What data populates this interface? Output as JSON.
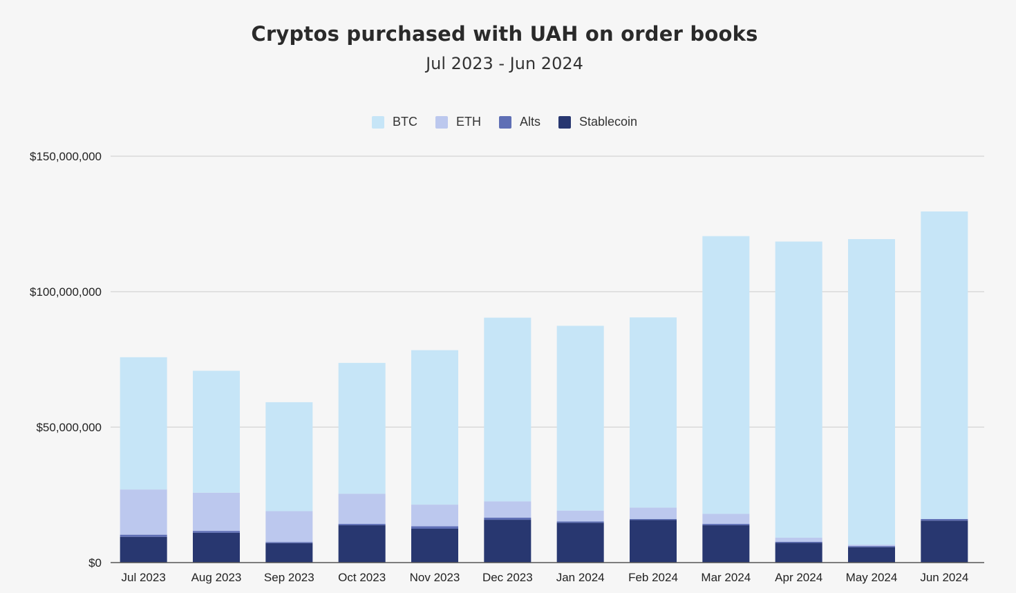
{
  "chart_data": {
    "type": "bar",
    "stacked": true,
    "title": "Cryptos purchased with UAH on order books",
    "subtitle": "Jul 2023 - Jun 2024",
    "xlabel": "",
    "ylabel": "",
    "ylim": [
      0,
      150000000
    ],
    "yticks": [
      {
        "value": 0,
        "label": "$0"
      },
      {
        "value": 50000000,
        "label": "$50,000,000"
      },
      {
        "value": 100000000,
        "label": "$100,000,000"
      },
      {
        "value": 150000000,
        "label": "$150,000,000"
      }
    ],
    "grid": true,
    "legend_position": "top-center",
    "categories": [
      "Jul 2023",
      "Aug 2023",
      "Sep 2023",
      "Oct 2023",
      "Nov 2023",
      "Dec 2023",
      "Jan 2024",
      "Feb 2024",
      "Mar 2024",
      "Apr 2024",
      "May 2024",
      "Jun 2024"
    ],
    "series": [
      {
        "name": "Stablecoin",
        "color": "#283770",
        "values": [
          9500000,
          11000000,
          7200000,
          13800000,
          12500000,
          15800000,
          14700000,
          15700000,
          13800000,
          7300000,
          5700000,
          15500000
        ]
      },
      {
        "name": "Alts",
        "color": "#5f6fb5",
        "values": [
          800000,
          700000,
          400000,
          500000,
          900000,
          800000,
          500000,
          400000,
          500000,
          400000,
          400000,
          600000
        ]
      },
      {
        "name": "ETH",
        "color": "#bcc8ee",
        "values": [
          16700000,
          14100000,
          11400000,
          11100000,
          8000000,
          6000000,
          4000000,
          4200000,
          3700000,
          1500000,
          500000,
          0
        ]
      },
      {
        "name": "BTC",
        "color": "#c6e5f7",
        "values": [
          48800000,
          45000000,
          40200000,
          48300000,
          57000000,
          67800000,
          68200000,
          70200000,
          102500000,
          109300000,
          112800000,
          113500000
        ]
      }
    ],
    "legend_order": [
      "BTC",
      "ETH",
      "Alts",
      "Stablecoin"
    ]
  },
  "colors": {
    "background": "#f6f6f6",
    "grid": "#d4d4d4",
    "axis": "#555555"
  }
}
